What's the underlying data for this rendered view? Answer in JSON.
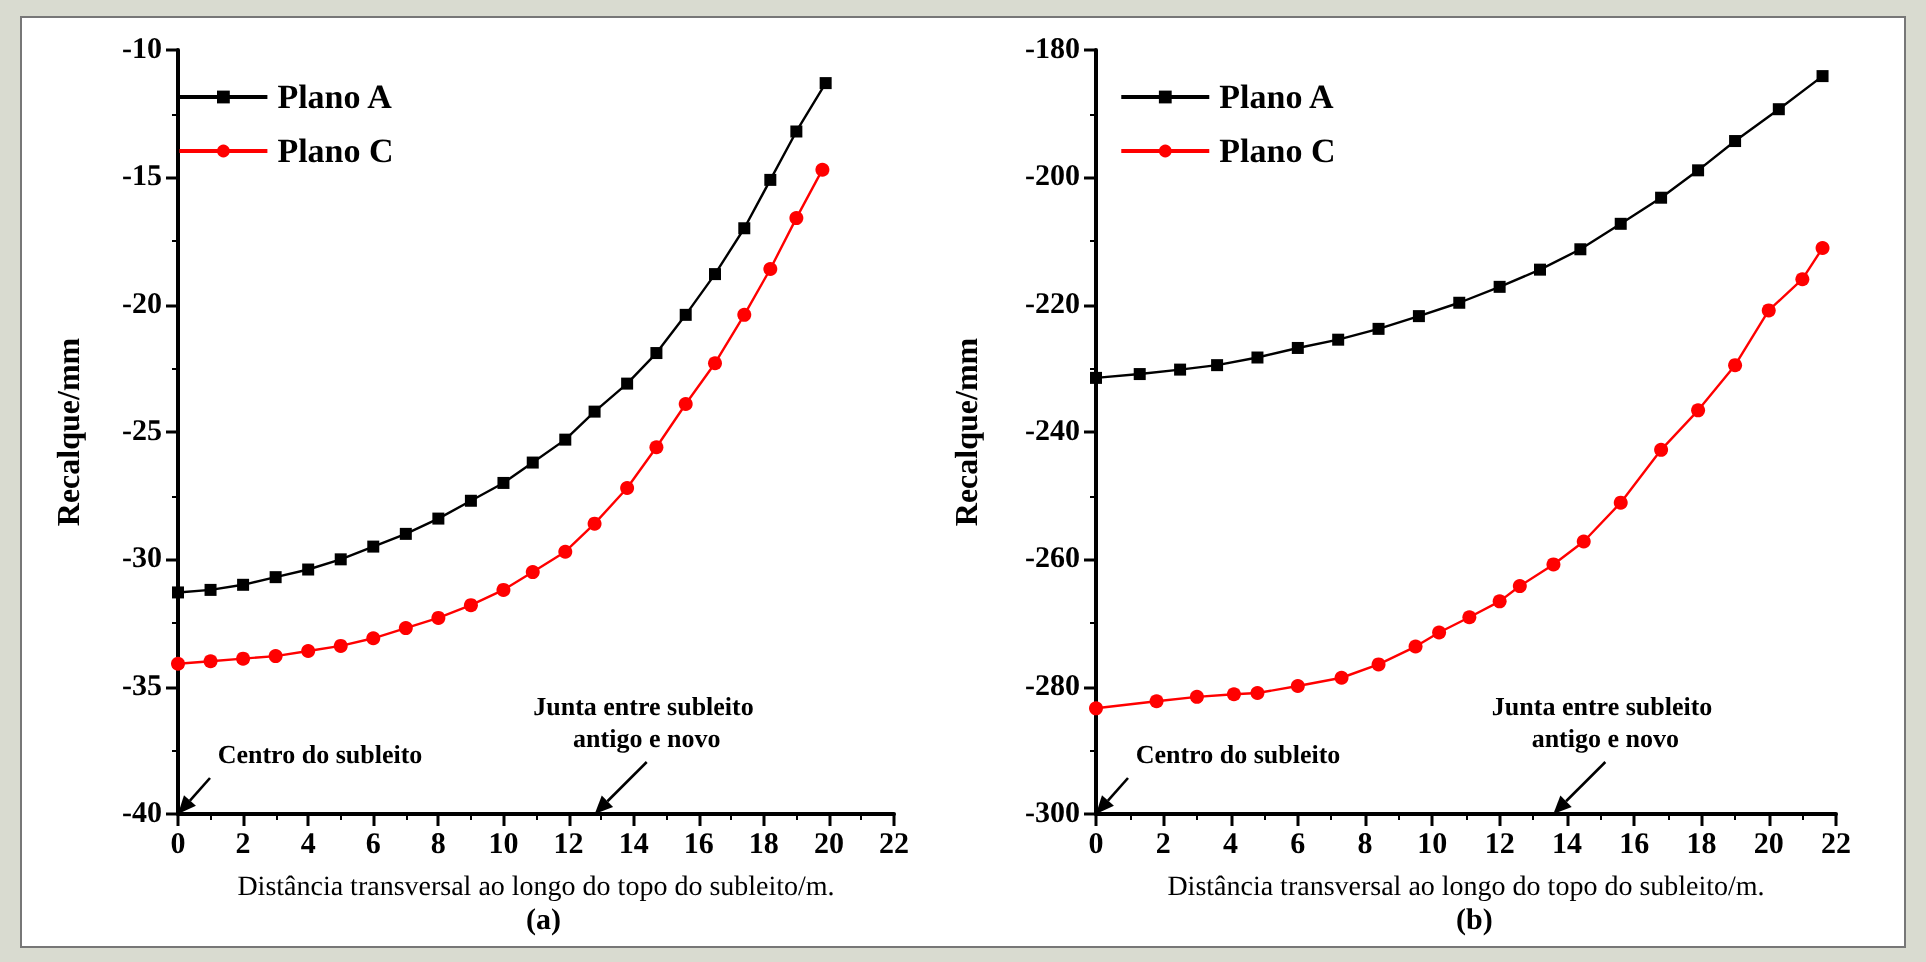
{
  "chart_data": [
    {
      "type": "line",
      "title": "(a)",
      "xlabel": "Distância transversal ao longo do topo do subleito/m.",
      "ylabel": "Recalque/mm",
      "xlim": [
        0,
        22
      ],
      "xticks": [
        0,
        2,
        4,
        6,
        8,
        10,
        12,
        14,
        16,
        18,
        20,
        22
      ],
      "ylim": [
        -40,
        -10
      ],
      "yticks": [
        -40,
        -35,
        -30,
        -25,
        -20,
        -15,
        -10
      ],
      "grid": false,
      "legend": "top left",
      "series": [
        {
          "name": "Plano A",
          "color": "#000000",
          "marker": "square",
          "x": [
            0,
            1,
            2,
            3,
            4,
            5,
            6,
            7,
            8,
            9,
            10,
            10.9,
            11.9,
            12.8,
            13.8,
            14.7,
            15.6,
            16.5,
            17.4,
            18.2,
            19.0,
            19.9
          ],
          "values": [
            -31.3,
            -31.2,
            -31.0,
            -30.7,
            -30.4,
            -30.0,
            -29.5,
            -29.0,
            -28.4,
            -27.7,
            -27.0,
            -26.2,
            -25.3,
            -24.2,
            -23.1,
            -21.9,
            -20.4,
            -18.8,
            -17.0,
            -15.1,
            -13.2,
            -11.3
          ]
        },
        {
          "name": "Plano C",
          "color": "#ff0000",
          "marker": "circle",
          "x": [
            0,
            1,
            2,
            3,
            4,
            5,
            6,
            7,
            8,
            9,
            10,
            10.9,
            11.9,
            12.8,
            13.8,
            14.7,
            15.6,
            16.5,
            17.4,
            18.2,
            19.0,
            19.8
          ],
          "values": [
            -34.1,
            -34.0,
            -33.9,
            -33.8,
            -33.6,
            -33.4,
            -33.1,
            -32.7,
            -32.3,
            -31.8,
            -31.2,
            -30.5,
            -29.7,
            -28.6,
            -27.2,
            -25.6,
            -23.9,
            -22.3,
            -20.4,
            -18.6,
            -16.6,
            -14.7
          ]
        }
      ],
      "annotations": [
        "Centro do subleito",
        "Junta entre subleito antigo e novo"
      ]
    },
    {
      "type": "line",
      "title": "(b)",
      "xlabel": "Distância transversal ao longo do topo do subleito/m.",
      "ylabel": "Recalque/mm",
      "xlim": [
        0,
        22
      ],
      "xticks": [
        0,
        2,
        4,
        6,
        8,
        10,
        12,
        14,
        16,
        18,
        20,
        22
      ],
      "ylim": [
        -300,
        -180
      ],
      "yticks": [
        -300,
        -280,
        -260,
        -240,
        -220,
        -200,
        -180
      ],
      "grid": false,
      "legend": "top left",
      "series": [
        {
          "name": "Plano A",
          "color": "#000000",
          "marker": "square",
          "x": [
            0,
            1.3,
            2.5,
            3.6,
            4.8,
            6.0,
            7.2,
            8.4,
            9.6,
            10.8,
            12.0,
            13.2,
            14.4,
            15.6,
            16.8,
            17.9,
            19.0,
            20.3,
            21.6
          ],
          "values": [
            -231.5,
            -230.9,
            -230.2,
            -229.5,
            -228.3,
            -226.8,
            -225.5,
            -223.8,
            -221.8,
            -219.7,
            -217.2,
            -214.5,
            -211.3,
            -207.3,
            -203.2,
            -198.9,
            -194.3,
            -189.3,
            -184.1
          ]
        },
        {
          "name": "Plano C",
          "color": "#ff0000",
          "marker": "circle",
          "x": [
            0,
            1.8,
            3.0,
            4.1,
            4.8,
            6.0,
            7.3,
            8.4,
            9.5,
            10.2,
            11.1,
            12.0,
            12.6,
            13.6,
            14.5,
            15.6,
            16.8,
            17.9,
            19.0,
            20.0,
            21.0,
            21.6
          ],
          "values": [
            -283.4,
            -282.3,
            -281.6,
            -281.2,
            -281.0,
            -279.9,
            -278.6,
            -276.5,
            -273.7,
            -271.5,
            -269.1,
            -266.6,
            -264.2,
            -260.8,
            -257.2,
            -251.1,
            -242.8,
            -236.6,
            -229.5,
            -220.9,
            -216.0,
            -211.1
          ]
        }
      ],
      "annotations": [
        "Centro do subleito",
        "Junta entre subleito antigo e novo"
      ]
    }
  ]
}
